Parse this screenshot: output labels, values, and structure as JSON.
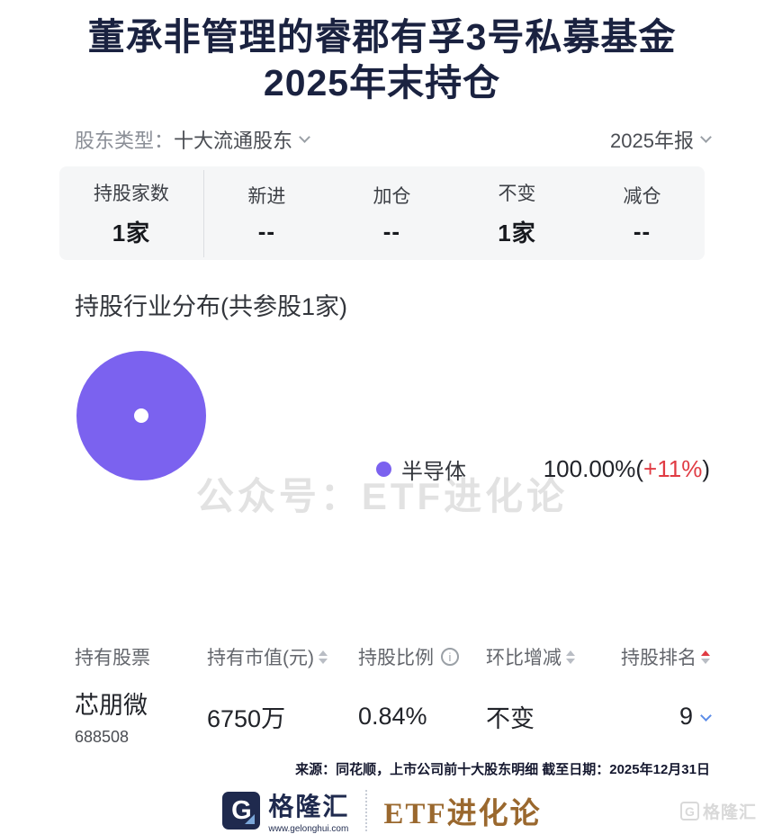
{
  "page": {
    "title_line1": "董承非管理的睿郡有孚3号私募基金",
    "title_line2": "2025年末持仓"
  },
  "filters": {
    "shareholder_type_label": "股东类型：",
    "shareholder_type_value": "十大流通股东",
    "report_period_value": "2025年报"
  },
  "stats": {
    "items": [
      {
        "label": "持股家数",
        "value": "1家"
      },
      {
        "label": "新进",
        "value": "--"
      },
      {
        "label": "加仓",
        "value": "--"
      },
      {
        "label": "不变",
        "value": "1家"
      },
      {
        "label": "减仓",
        "value": "--"
      }
    ]
  },
  "industry": {
    "section_title": "持股行业分布(共参股1家)",
    "watermark": "公众号：ETF进化论",
    "legend": {
      "name": "半导体",
      "value_prefix": "100.00%(",
      "change": "+11%",
      "value_suffix": ")"
    }
  },
  "chart_data": {
    "type": "pie",
    "subtype": "donut",
    "title": "持股行业分布(共参股1家)",
    "categories": [
      "半导体"
    ],
    "values": [
      100.0
    ],
    "unit": "%",
    "colors": [
      "#7B62EF"
    ],
    "annotations": [
      "+11%"
    ],
    "legend_position": "right"
  },
  "table": {
    "headers": [
      {
        "label": "持有股票"
      },
      {
        "label": "持有市值(元)"
      },
      {
        "label": "持股比例"
      },
      {
        "label": "环比增减"
      },
      {
        "label": "持股排名"
      }
    ],
    "rows": [
      {
        "stock_name": "芯朋微",
        "stock_code": "688508",
        "market_value": "6750万",
        "holding_ratio": "0.84%",
        "change": "不变",
        "rank": "9"
      }
    ]
  },
  "source_note": "来源：同花顺，上市公司前十大股东明细 截至日期：2025年12月31日",
  "footer": {
    "brand_letter": "G",
    "brand_name": "格隆汇",
    "brand_site": "www.gelonghui.com",
    "channel_name": "ETF进化论",
    "corner_watermark_letter": "G",
    "corner_watermark": "格隆汇"
  },
  "icons": {
    "info_glyph": "i"
  },
  "colors": {
    "title_navy": "#1A2240",
    "accent_purple": "#7B62EF",
    "change_red": "#E03B43",
    "link_blue": "#5C8DE8",
    "brand_brown": "#9A682E",
    "stats_bg": "#F5F6F7"
  }
}
